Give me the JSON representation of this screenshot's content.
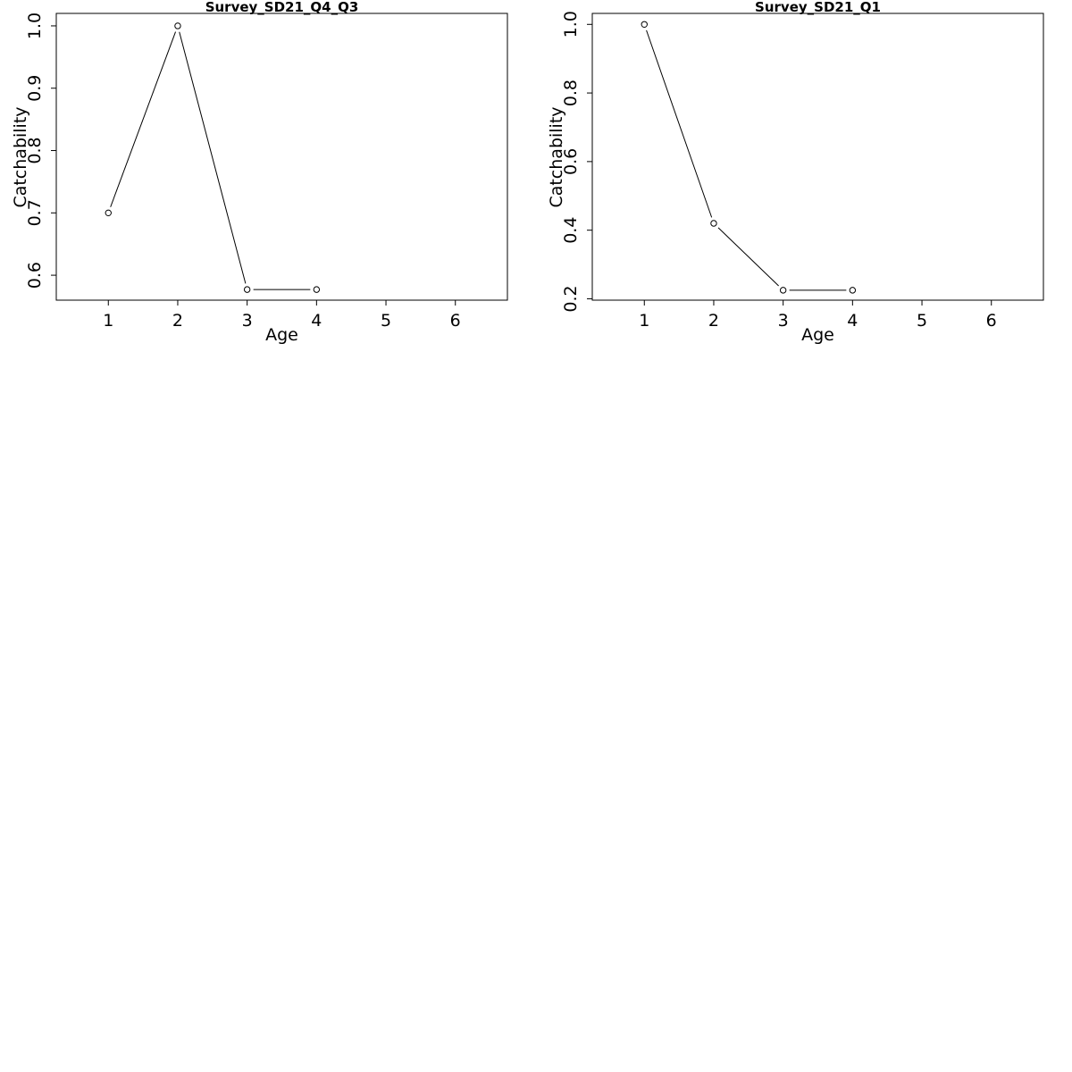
{
  "chart_data": [
    {
      "type": "line",
      "title": "Survey_SD21_Q4_Q3",
      "xlabel": "Age",
      "ylabel": "Catchability",
      "xlim": [
        0.25,
        6.75
      ],
      "ylim": [
        0.56,
        1.02
      ],
      "xticks": [
        1,
        2,
        3,
        4,
        5,
        6
      ],
      "yticks": [
        0.6,
        0.7,
        0.8,
        0.9,
        1.0
      ],
      "ytick_labels": [
        "0.6",
        "0.7",
        "0.8",
        "0.9",
        "1.0"
      ],
      "x": [
        1,
        2,
        3,
        4
      ],
      "y": [
        0.7,
        1.0,
        0.577,
        0.577
      ],
      "grid": false
    },
    {
      "type": "line",
      "title": "Survey_SD21_Q1",
      "xlabel": "Age",
      "ylabel": "Catchability",
      "xlim": [
        0.25,
        6.75
      ],
      "ylim": [
        0.196,
        1.032
      ],
      "xticks": [
        1,
        2,
        3,
        4,
        5,
        6
      ],
      "yticks": [
        0.2,
        0.4,
        0.6,
        0.8,
        1.0
      ],
      "ytick_labels": [
        "0.2",
        "0.4",
        "0.6",
        "0.8",
        "1.0"
      ],
      "x": [
        1,
        2,
        3,
        4
      ],
      "y": [
        1.0,
        0.42,
        0.225,
        0.225
      ],
      "grid": false
    }
  ]
}
